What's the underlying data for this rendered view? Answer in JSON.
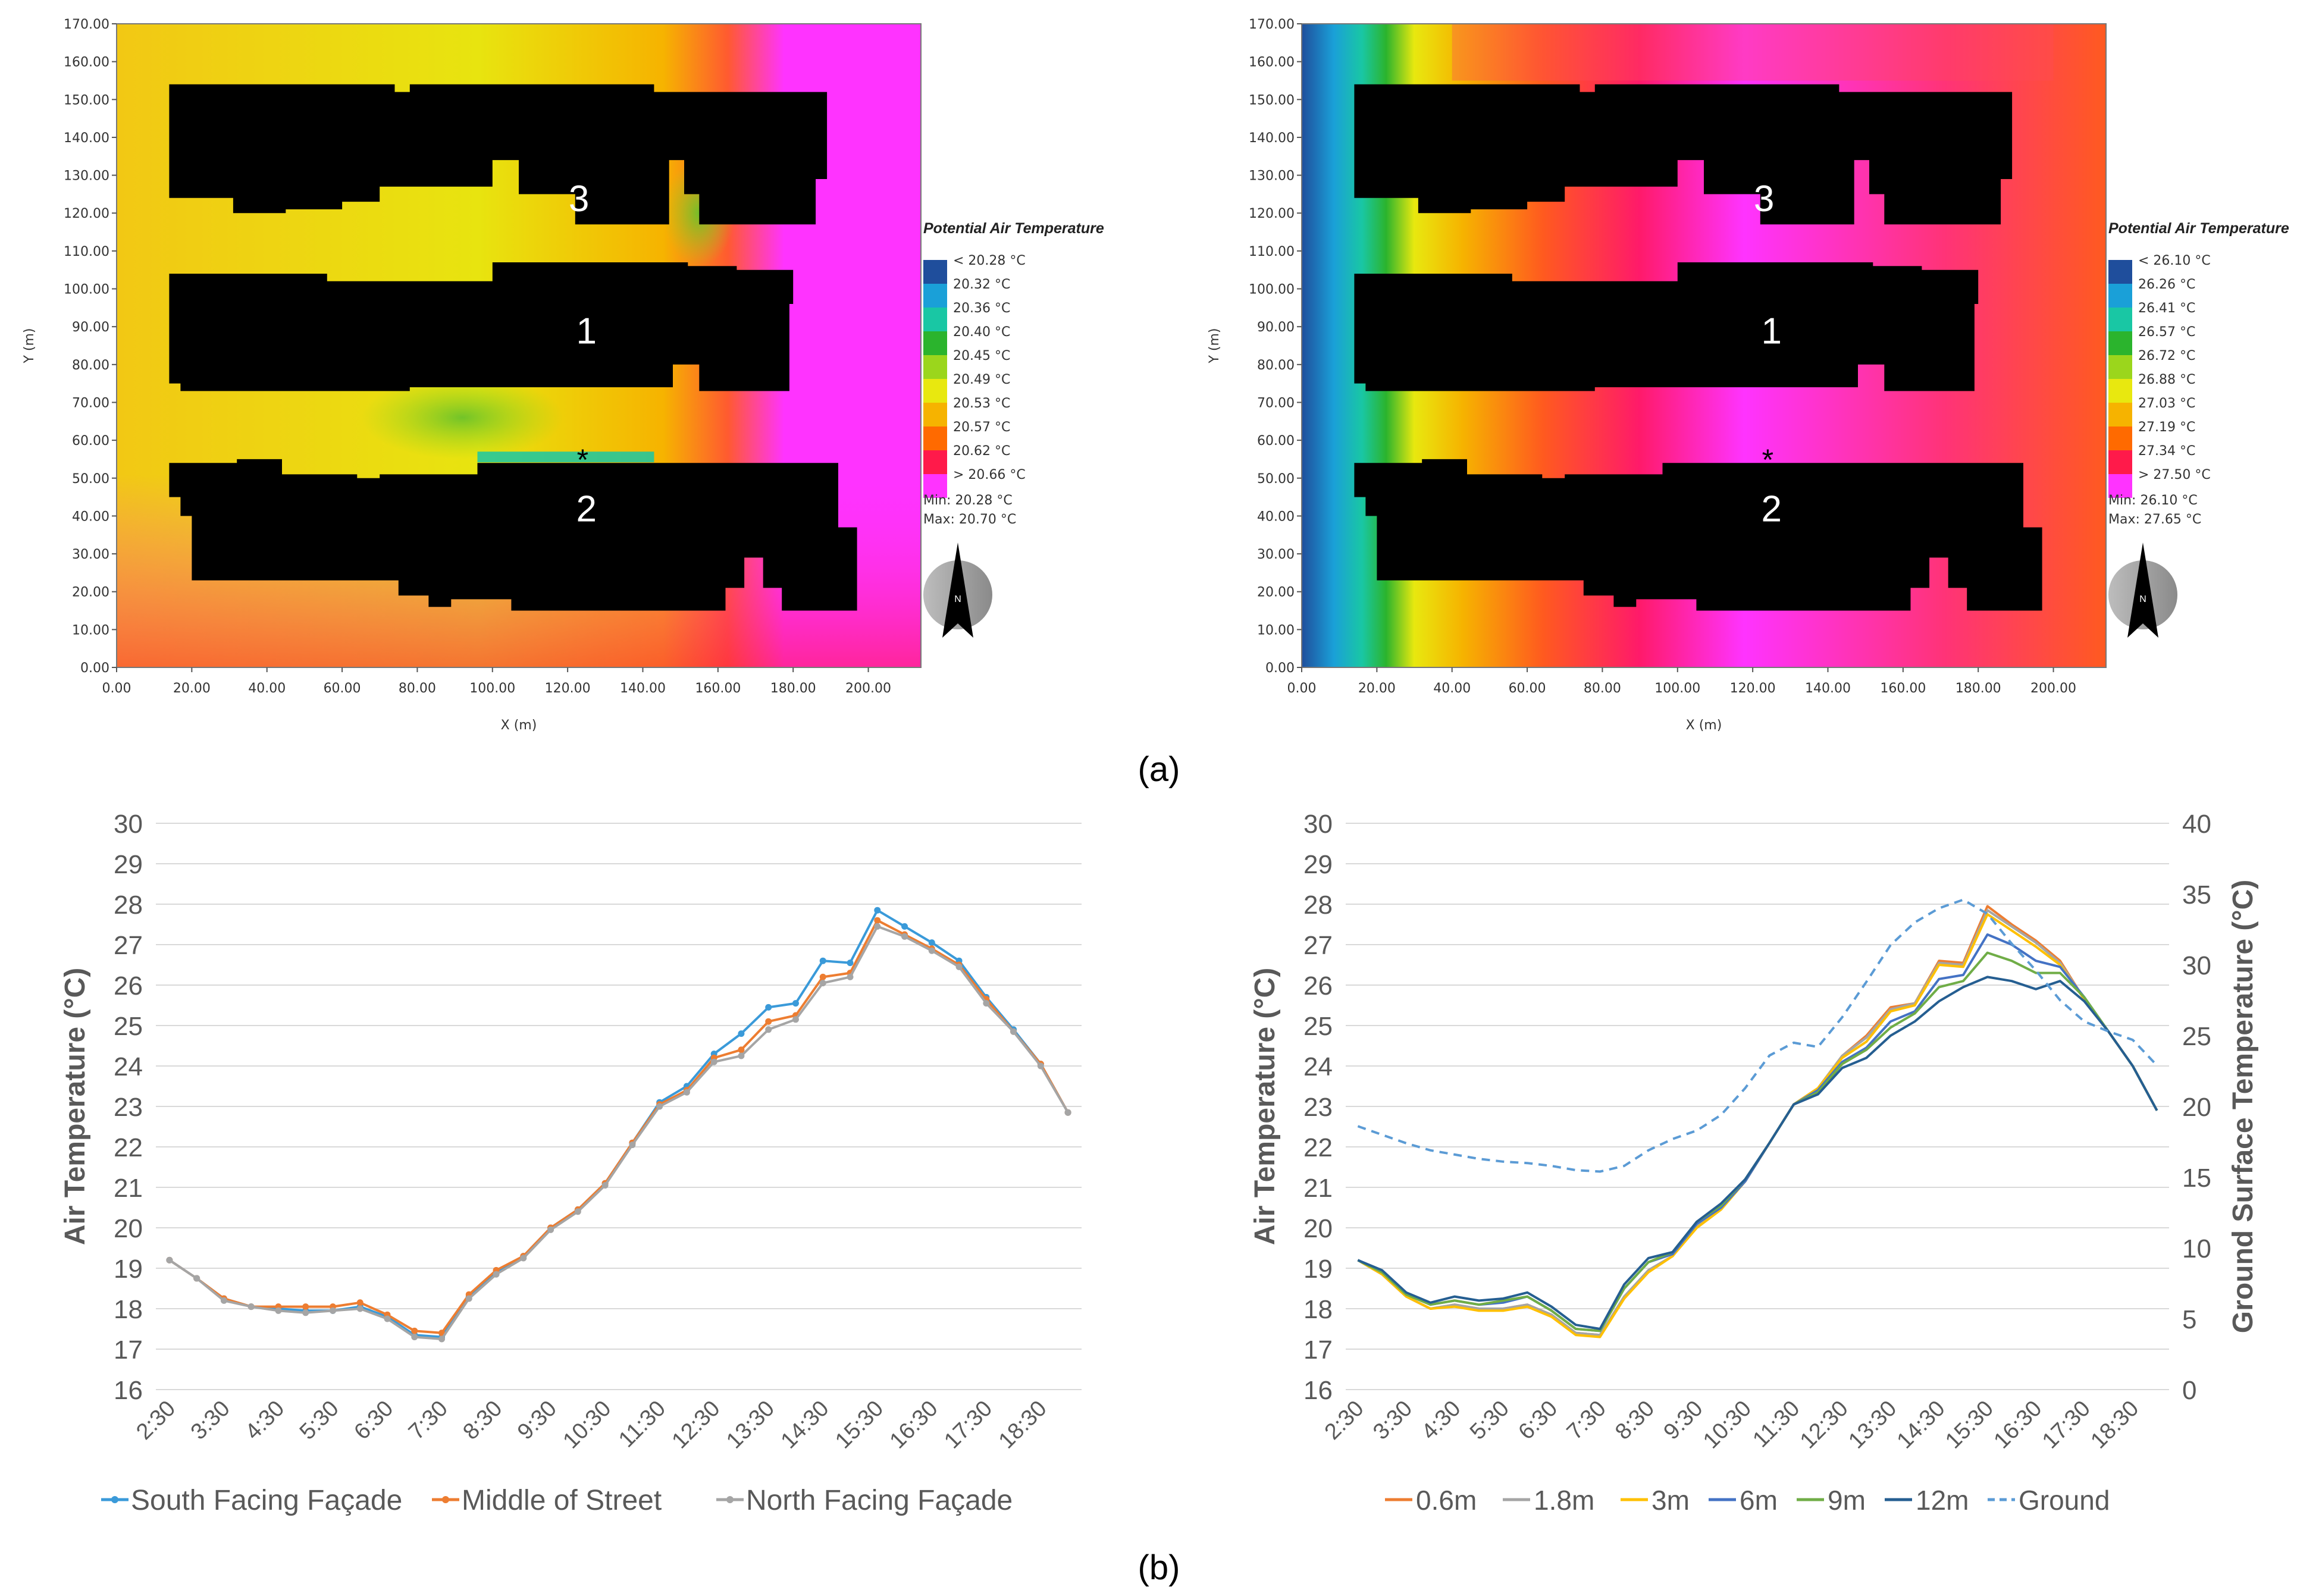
{
  "chart_data": [
    {
      "type": "heatmap",
      "panel": "a-left",
      "xlabel": "X (m)",
      "ylabel": "Y (m)",
      "xlim": [
        0,
        214
      ],
      "ylim": [
        0,
        170
      ],
      "x_ticks": [
        "0.00",
        "20.00",
        "40.00",
        "60.00",
        "80.00",
        "100.00",
        "120.00",
        "140.00",
        "160.00",
        "180.00",
        "200.00"
      ],
      "y_ticks": [
        "0.00",
        "10.00",
        "20.00",
        "30.00",
        "40.00",
        "50.00",
        "60.00",
        "70.00",
        "80.00",
        "90.00",
        "100.00",
        "110.00",
        "120.00",
        "130.00",
        "140.00",
        "150.00",
        "160.00",
        "170.00"
      ],
      "legend_title": "Potential Air Temperature",
      "legend_labels": [
        "< 20.28 °C",
        "20.32 °C",
        "20.36 °C",
        "20.40 °C",
        "20.45 °C",
        "20.49 °C",
        "20.53 °C",
        "20.57 °C",
        "20.62 °C",
        "> 20.66 °C"
      ],
      "legend_colors": [
        "#1f4e9c",
        "#1aa0d8",
        "#19c7a4",
        "#2bb42d",
        "#9bd61c",
        "#e8e80f",
        "#f6b300",
        "#ff6a00",
        "#ff1a4a",
        "#ff33ff"
      ],
      "min_label": "Min: 20.28 °C",
      "max_label": "Max: 20.70 °C",
      "north_label": "N",
      "building_labels": [
        "3",
        "1",
        "2"
      ],
      "marker_label": "*"
    },
    {
      "type": "heatmap",
      "panel": "a-right",
      "xlabel": "X (m)",
      "ylabel": "Y (m)",
      "xlim": [
        0,
        214
      ],
      "ylim": [
        0,
        170
      ],
      "x_ticks": [
        "0.00",
        "20.00",
        "40.00",
        "60.00",
        "80.00",
        "100.00",
        "120.00",
        "140.00",
        "160.00",
        "180.00",
        "200.00"
      ],
      "y_ticks": [
        "0.00",
        "10.00",
        "20.00",
        "30.00",
        "40.00",
        "50.00",
        "60.00",
        "70.00",
        "80.00",
        "90.00",
        "100.00",
        "110.00",
        "120.00",
        "130.00",
        "140.00",
        "150.00",
        "160.00",
        "170.00"
      ],
      "legend_title": "Potential Air Temperature",
      "legend_labels": [
        "< 26.10 °C",
        "26.26 °C",
        "26.41 °C",
        "26.57 °C",
        "26.72 °C",
        "26.88 °C",
        "27.03 °C",
        "27.19 °C",
        "27.34 °C",
        "> 27.50 °C"
      ],
      "legend_colors": [
        "#1f4e9c",
        "#1aa0d8",
        "#19c7a4",
        "#2bb42d",
        "#9bd61c",
        "#e8e80f",
        "#f6b300",
        "#ff6a00",
        "#ff1a4a",
        "#ff33ff"
      ],
      "min_label": "Min: 26.10 °C",
      "max_label": "Max: 27.65 °C",
      "north_label": "N",
      "building_labels": [
        "3",
        "1",
        "2"
      ],
      "marker_label": "*"
    },
    {
      "type": "line",
      "panel": "b-left",
      "ylabel": "Air Temperature (°C)",
      "ylim": [
        16,
        30
      ],
      "y_ticks": [
        "16",
        "17",
        "18",
        "19",
        "20",
        "21",
        "22",
        "23",
        "24",
        "25",
        "26",
        "27",
        "28",
        "29",
        "30"
      ],
      "x_tick_labels": [
        "2:30",
        "3:30",
        "4:30",
        "5:30",
        "6:30",
        "7:30",
        "8:30",
        "9:30",
        "10:30",
        "11:30",
        "12:30",
        "13:30",
        "14:30",
        "15:30",
        "16:30",
        "17:30",
        "18:30"
      ],
      "series": [
        {
          "name": "South Facing Façade",
          "color": "#3a9ad9",
          "values": [
            19.2,
            18.75,
            18.25,
            18.05,
            18.0,
            17.95,
            17.95,
            18.05,
            17.8,
            17.35,
            17.3,
            18.3,
            18.9,
            19.3,
            20.0,
            20.45,
            21.1,
            22.1,
            23.1,
            23.5,
            24.3,
            24.8,
            25.45,
            25.55,
            26.6,
            26.55,
            27.85,
            27.45,
            27.05,
            26.6,
            25.7,
            24.9,
            24.05,
            22.85
          ]
        },
        {
          "name": "Middle of Street",
          "color": "#ed7d31",
          "values": [
            19.2,
            18.75,
            18.25,
            18.05,
            18.05,
            18.05,
            18.05,
            18.15,
            17.85,
            17.45,
            17.4,
            18.35,
            18.95,
            19.3,
            20.0,
            20.45,
            21.1,
            22.1,
            23.05,
            23.4,
            24.2,
            24.4,
            25.1,
            25.25,
            26.2,
            26.3,
            27.6,
            27.25,
            26.9,
            26.5,
            25.65,
            24.85,
            24.05,
            22.85
          ]
        },
        {
          "name": "North Facing Façade",
          "color": "#a5a5a5",
          "values": [
            19.2,
            18.75,
            18.2,
            18.05,
            17.95,
            17.9,
            17.95,
            18.0,
            17.75,
            17.3,
            17.25,
            18.25,
            18.85,
            19.25,
            19.95,
            20.4,
            21.05,
            22.05,
            23.0,
            23.35,
            24.1,
            24.25,
            24.9,
            25.15,
            26.05,
            26.2,
            27.45,
            27.2,
            26.85,
            26.45,
            25.55,
            24.85,
            24.0,
            22.85
          ]
        }
      ]
    },
    {
      "type": "line",
      "panel": "b-right",
      "ylabel": "Air Temperature (°C)",
      "ylabel_right": "Ground Surface Temperature (°C)",
      "ylim": [
        16,
        30
      ],
      "ylim_right": [
        0,
        40
      ],
      "y_ticks": [
        "16",
        "17",
        "18",
        "19",
        "20",
        "21",
        "22",
        "23",
        "24",
        "25",
        "26",
        "27",
        "28",
        "29",
        "30"
      ],
      "y_ticks_right": [
        "0",
        "5",
        "10",
        "15",
        "20",
        "25",
        "30",
        "35",
        "40"
      ],
      "x_tick_labels": [
        "2:30",
        "3:30",
        "4:30",
        "5:30",
        "6:30",
        "7:30",
        "8:30",
        "9:30",
        "10:30",
        "11:30",
        "12:30",
        "13:30",
        "14:30",
        "15:30",
        "16:30",
        "17:30",
        "18:30"
      ],
      "series": [
        {
          "name": "0.6m",
          "color": "#ed7d31",
          "dashed": false,
          "values": [
            19.2,
            18.85,
            18.3,
            18.0,
            18.1,
            18.0,
            18.0,
            18.1,
            17.85,
            17.4,
            17.35,
            18.25,
            18.95,
            19.3,
            20.05,
            20.5,
            21.15,
            22.1,
            23.05,
            23.45,
            24.25,
            24.75,
            25.45,
            25.55,
            26.6,
            26.55,
            27.95,
            27.5,
            27.1,
            26.6,
            25.65,
            24.85,
            24.0,
            22.9
          ]
        },
        {
          "name": "1.8m",
          "color": "#a5a5a5",
          "dashed": false,
          "values": [
            19.2,
            18.85,
            18.3,
            18.0,
            18.1,
            18.0,
            18.0,
            18.1,
            17.85,
            17.4,
            17.35,
            18.3,
            18.95,
            19.3,
            20.05,
            20.5,
            21.15,
            22.1,
            23.05,
            23.45,
            24.25,
            24.7,
            25.4,
            25.55,
            26.55,
            26.5,
            27.85,
            27.45,
            27.05,
            26.55,
            25.65,
            24.85,
            24.0,
            22.9
          ]
        },
        {
          "name": "3m",
          "color": "#ffc000",
          "dashed": false,
          "values": [
            19.2,
            18.85,
            18.3,
            18.0,
            18.05,
            17.95,
            17.95,
            18.05,
            17.8,
            17.35,
            17.3,
            18.25,
            18.9,
            19.3,
            20.0,
            20.45,
            21.15,
            22.1,
            23.05,
            23.45,
            24.2,
            24.6,
            25.35,
            25.5,
            26.5,
            26.45,
            27.75,
            27.35,
            26.95,
            26.5,
            25.65,
            24.85,
            24.0,
            22.9
          ]
        },
        {
          "name": "6m",
          "color": "#4472c4",
          "dashed": false,
          "values": [
            19.2,
            18.9,
            18.35,
            18.1,
            18.2,
            18.1,
            18.15,
            18.3,
            17.95,
            17.5,
            17.45,
            18.5,
            19.15,
            19.35,
            20.1,
            20.5,
            21.15,
            22.1,
            23.05,
            23.4,
            24.1,
            24.45,
            25.1,
            25.35,
            26.15,
            26.25,
            27.25,
            27.0,
            26.6,
            26.45,
            25.7,
            24.85,
            24.0,
            22.9
          ]
        },
        {
          "name": "9m",
          "color": "#70ad47",
          "dashed": false,
          "values": [
            19.2,
            18.9,
            18.35,
            18.1,
            18.2,
            18.1,
            18.2,
            18.3,
            17.95,
            17.5,
            17.45,
            18.5,
            19.15,
            19.4,
            20.15,
            20.55,
            21.2,
            22.1,
            23.05,
            23.35,
            24.05,
            24.4,
            24.95,
            25.3,
            25.95,
            26.1,
            26.8,
            26.6,
            26.3,
            26.3,
            25.7,
            24.85,
            24.0,
            22.9
          ]
        },
        {
          "name": "12m",
          "color": "#255e91",
          "dashed": false,
          "values": [
            19.2,
            18.95,
            18.4,
            18.15,
            18.3,
            18.2,
            18.25,
            18.4,
            18.05,
            17.6,
            17.5,
            18.6,
            19.25,
            19.4,
            20.15,
            20.6,
            21.2,
            22.1,
            23.05,
            23.3,
            23.95,
            24.2,
            24.75,
            25.1,
            25.6,
            25.95,
            26.2,
            26.1,
            25.9,
            26.1,
            25.6,
            24.85,
            24.0,
            22.9
          ]
        },
        {
          "name": "Ground",
          "color": "#5b9bd5",
          "dashed": true,
          "values": [
            18.6,
            18.0,
            17.4,
            16.9,
            16.6,
            16.3,
            16.1,
            16.0,
            15.8,
            15.5,
            15.4,
            15.8,
            16.9,
            17.7,
            18.3,
            19.4,
            21.3,
            23.6,
            24.5,
            24.2,
            26.3,
            28.8,
            31.4,
            33.0,
            34.0,
            34.6,
            33.6,
            31.5,
            29.6,
            27.5,
            26.0,
            25.3,
            24.7,
            22.9
          ]
        }
      ]
    }
  ],
  "captions": {
    "a": "(a)",
    "b": "(b)"
  }
}
